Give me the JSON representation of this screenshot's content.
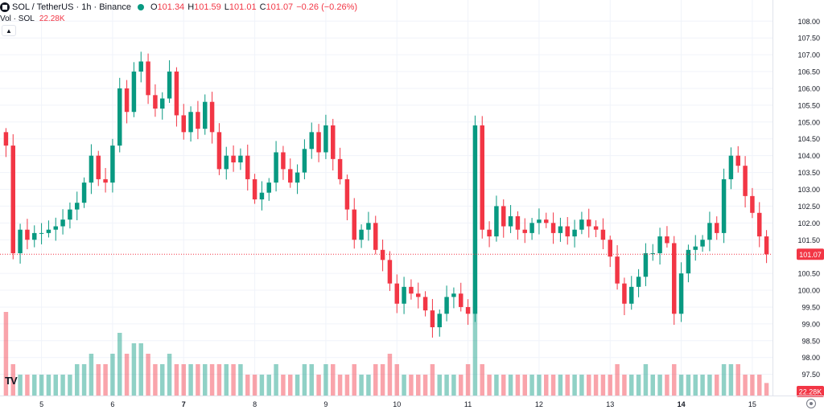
{
  "header": {
    "symbol": "SOL / TetherUS · 1h · Binance",
    "status_color": "#089981",
    "open_label": "O",
    "open": "101.34",
    "high_label": "H",
    "high": "101.59",
    "low_label": "L",
    "low": "101.01",
    "close_label": "C",
    "close": "101.07",
    "change": "−0.26 (−0.26%)",
    "volume_label": "Vol · SOL",
    "volume_value": "22.28K"
  },
  "chart_data": {
    "type": "candlestick",
    "y_ticks": [
      "108.00",
      "107.50",
      "107.00",
      "106.50",
      "106.00",
      "105.50",
      "105.00",
      "104.50",
      "104.00",
      "103.50",
      "103.00",
      "102.50",
      "102.00",
      "101.50",
      "100.50",
      "100.00",
      "99.50",
      "99.00",
      "98.50",
      "98.00",
      "97.50"
    ],
    "ylim": [
      97.3,
      108.15
    ],
    "x_ticks": [
      {
        "label": "5",
        "bar": 5,
        "bold": false
      },
      {
        "label": "6",
        "bar": 15,
        "bold": false
      },
      {
        "label": "7",
        "bar": 25,
        "bold": true
      },
      {
        "label": "8",
        "bar": 35,
        "bold": false
      },
      {
        "label": "9",
        "bar": 45,
        "bold": false
      },
      {
        "label": "10",
        "bar": 55,
        "bold": false
      },
      {
        "label": "11",
        "bar": 65,
        "bold": false
      },
      {
        "label": "12",
        "bar": 75,
        "bold": false
      },
      {
        "label": "13",
        "bar": 85,
        "bold": false
      },
      {
        "label": "14",
        "bar": 95,
        "bold": true
      },
      {
        "label": "15",
        "bar": 105,
        "bold": false
      }
    ],
    "last_price": "101.07",
    "last_volume": "22.28K",
    "up_color": "#089981",
    "down_color": "#f23645",
    "closes": [
      104.3,
      101.1,
      101.8,
      101.5,
      101.7,
      101.7,
      101.8,
      101.9,
      102.1,
      102.4,
      102.6,
      103.2,
      104.0,
      103.3,
      103.2,
      104.3,
      106.0,
      105.3,
      106.5,
      106.8,
      105.8,
      105.4,
      105.7,
      106.5,
      105.2,
      104.7,
      105.3,
      104.8,
      105.6,
      104.7,
      103.6,
      104.0,
      103.8,
      104.0,
      103.3,
      102.7,
      102.9,
      103.2,
      104.1,
      103.6,
      103.2,
      103.5,
      104.2,
      104.7,
      104.1,
      104.9,
      103.9,
      103.3,
      102.4,
      101.5,
      101.8,
      102.0,
      101.2,
      100.9,
      100.2,
      99.6,
      100.1,
      99.9,
      99.8,
      99.4,
      98.9,
      99.3,
      99.8,
      99.9,
      99.5,
      99.3,
      104.9,
      101.8,
      101.6,
      102.5,
      101.9,
      102.2,
      101.8,
      101.7,
      102.0,
      102.1,
      102.0,
      101.7,
      101.9,
      101.6,
      101.8,
      102.1,
      101.9,
      101.8,
      101.5,
      101.0,
      100.2,
      99.6,
      100.1,
      100.4,
      101.1,
      101.1,
      101.6,
      101.4,
      99.3,
      100.5,
      101.2,
      101.3,
      101.5,
      102.0,
      101.7,
      103.3,
      104.0,
      103.7,
      102.8,
      102.3,
      101.6,
      101.07
    ],
    "volume": [
      8,
      3,
      2,
      2,
      2,
      2,
      2,
      2,
      2,
      2,
      3,
      3,
      4,
      3,
      3,
      4,
      6,
      4,
      5,
      5,
      4,
      3,
      3,
      4,
      3,
      3,
      3,
      3,
      3,
      3,
      3,
      3,
      3,
      3,
      2,
      2,
      2,
      2,
      3,
      2,
      2,
      2,
      3,
      3,
      2,
      3,
      3,
      2,
      2,
      3,
      2,
      2,
      3,
      3,
      4,
      3,
      2,
      2,
      2,
      2,
      3,
      2,
      2,
      2,
      2,
      3,
      10,
      3,
      2,
      2,
      2,
      2,
      2,
      2,
      2,
      2,
      2,
      2,
      2,
      2,
      2,
      2,
      2,
      2,
      2,
      2,
      3,
      2,
      2,
      2,
      3,
      2,
      2,
      2,
      3,
      2,
      2,
      2,
      2,
      2,
      2,
      3,
      3,
      3,
      2,
      2,
      2,
      1.2
    ]
  },
  "actions": {
    "collapse_icon": "chevron-up-icon",
    "settings_icon": "settings-icon"
  },
  "brand": {
    "logo": "TV"
  }
}
